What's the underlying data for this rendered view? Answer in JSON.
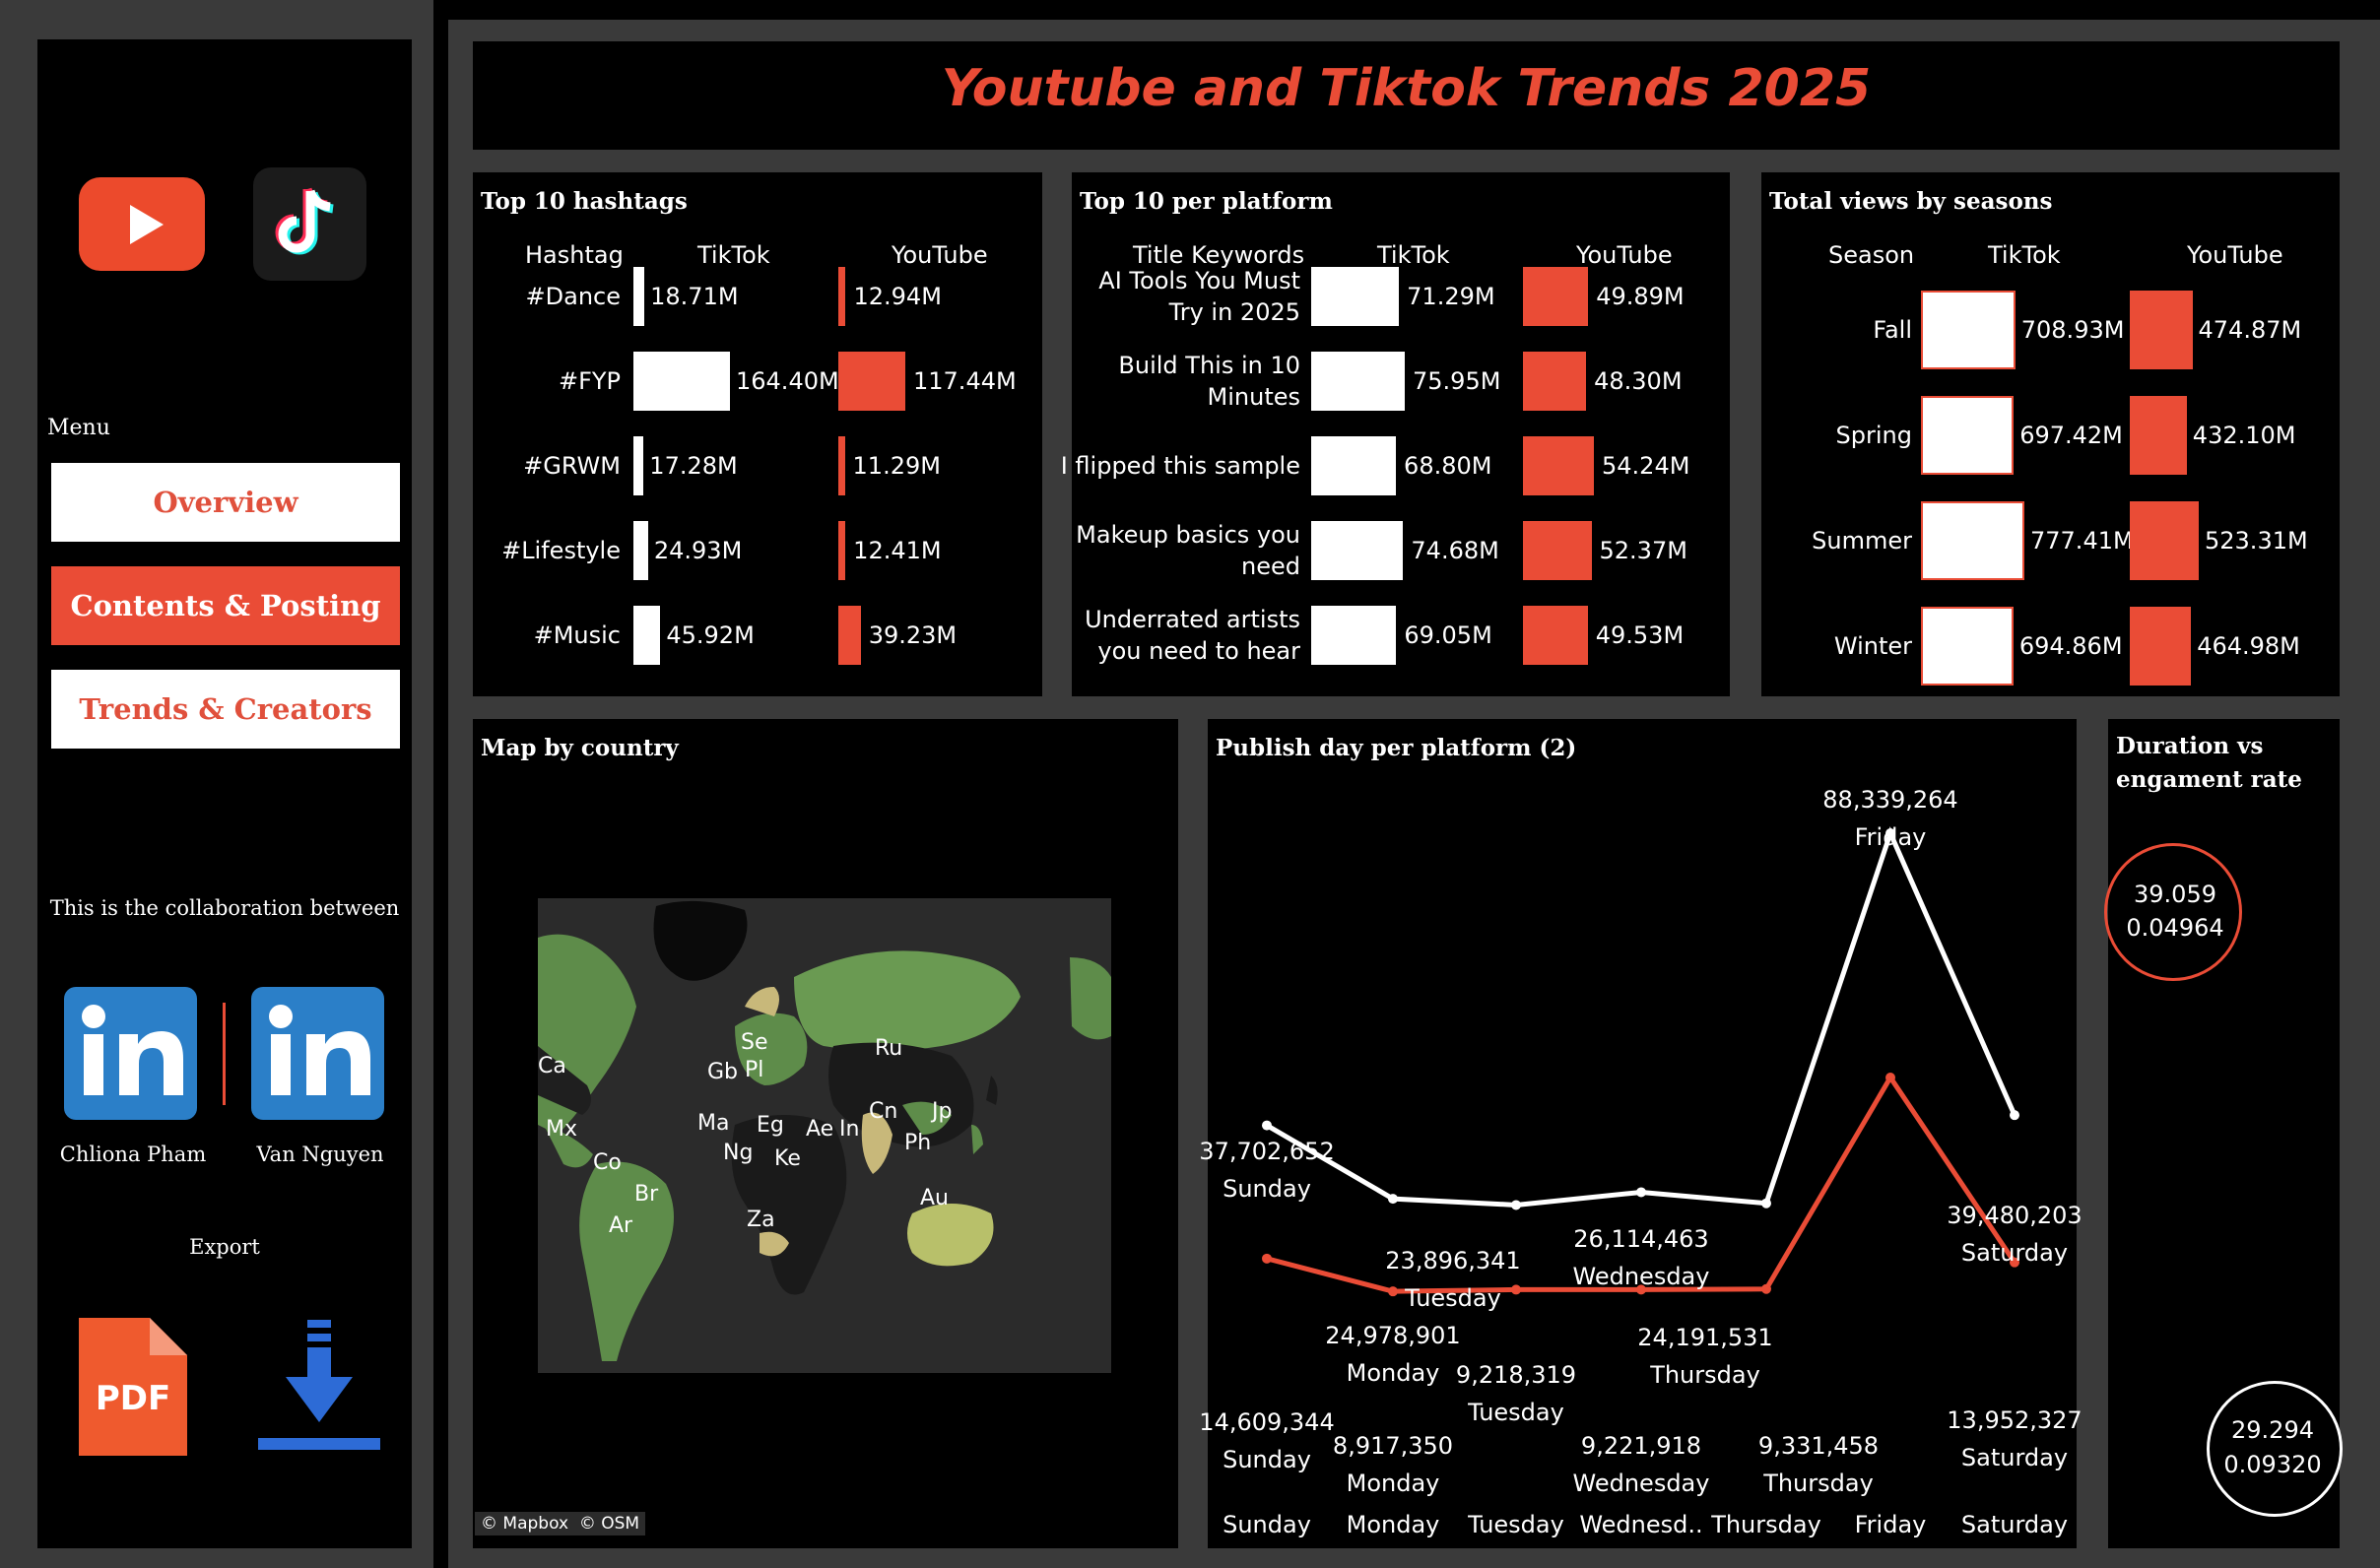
{
  "dashboard": {
    "title": "Youtube and Tiktok Trends 2025"
  },
  "sidebar": {
    "menu_label": "Menu",
    "nav": [
      {
        "label": "Overview"
      },
      {
        "label": "Contents & Posting"
      },
      {
        "label": "Trends & Creators"
      }
    ],
    "collab_text": "This is the collaboration between",
    "creators": [
      {
        "name": "Chliona Pham"
      },
      {
        "name": "Van Nguyen"
      }
    ],
    "export_label": "Export",
    "pdf_label": "PDF"
  },
  "colors": {
    "accent": "#ea4c36",
    "youtube": "#ea4c36",
    "tiktok": "#ffffff",
    "panel_bg": "#000000",
    "frame": "#3a3a3a"
  },
  "hashtags": {
    "title": "Top 10 hashtags",
    "headers": {
      "col1": "Hashtag",
      "col2": "TikTok",
      "col3": "YouTube"
    },
    "rows": [
      {
        "tag": "#Dance",
        "tiktok": 18.71,
        "youtube": 12.94,
        "tiktok_label": "18.71M",
        "youtube_label": "12.94M"
      },
      {
        "tag": "#FYP",
        "tiktok": 164.4,
        "youtube": 117.44,
        "tiktok_label": "164.40M",
        "youtube_label": "117.44M"
      },
      {
        "tag": "#GRWM",
        "tiktok": 17.28,
        "youtube": 11.29,
        "tiktok_label": "17.28M",
        "youtube_label": "11.29M"
      },
      {
        "tag": "#Lifestyle",
        "tiktok": 24.93,
        "youtube": 12.41,
        "tiktok_label": "24.93M",
        "youtube_label": "12.41M"
      },
      {
        "tag": "#Music",
        "tiktok": 45.92,
        "youtube": 39.23,
        "tiktok_label": "45.92M",
        "youtube_label": "39.23M"
      }
    ]
  },
  "platform": {
    "title": "Top 10 per platform",
    "headers": {
      "col1": "Title Keywords",
      "col2": "TikTok",
      "col3": "YouTube"
    },
    "rows": [
      {
        "line1": "AI Tools You Must",
        "line2": "Try in 2025",
        "tiktok": 71.29,
        "youtube": 49.89,
        "tiktok_label": "71.29M",
        "youtube_label": "49.89M"
      },
      {
        "line1": "Build This in 10",
        "line2": "Minutes",
        "tiktok": 75.95,
        "youtube": 48.3,
        "tiktok_label": "75.95M",
        "youtube_label": "48.30M"
      },
      {
        "line1": "I flipped this sample",
        "line2": "",
        "tiktok": 68.8,
        "youtube": 54.24,
        "tiktok_label": "68.80M",
        "youtube_label": "54.24M"
      },
      {
        "line1": "Makeup basics you",
        "line2": "need",
        "tiktok": 74.68,
        "youtube": 52.37,
        "tiktok_label": "74.68M",
        "youtube_label": "52.37M"
      },
      {
        "line1": "Underrated artists",
        "line2": "you need to hear",
        "tiktok": 69.05,
        "youtube": 49.53,
        "tiktok_label": "69.05M",
        "youtube_label": "49.53M"
      }
    ]
  },
  "seasons": {
    "title": "Total views by seasons",
    "headers": {
      "col1": "Season",
      "col2": "TikTok",
      "col3": "YouTube"
    },
    "rows": [
      {
        "season": "Fall",
        "tiktok": 708.93,
        "youtube": 474.87,
        "tiktok_label": "708.93M",
        "youtube_label": "474.87M"
      },
      {
        "season": "Spring",
        "tiktok": 697.42,
        "youtube": 432.1,
        "tiktok_label": "697.42M",
        "youtube_label": "432.10M"
      },
      {
        "season": "Summer",
        "tiktok": 777.41,
        "youtube": 523.31,
        "tiktok_label": "777.41M",
        "youtube_label": "523.31M"
      },
      {
        "season": "Winter",
        "tiktok": 694.86,
        "youtube": 464.98,
        "tiktok_label": "694.86M",
        "youtube_label": "464.98M"
      }
    ]
  },
  "map": {
    "title": "Map by country",
    "attribution": "© Mapbox  © OSM",
    "labels": [
      "Ca",
      "Mx",
      "Co",
      "Br",
      "Ar",
      "Se",
      "Gb",
      "Pl",
      "Ma",
      "Eg",
      "Ng",
      "Ke",
      "Za",
      "Ae",
      "In",
      "Ru",
      "Cn",
      "Jp",
      "Ph",
      "Au"
    ]
  },
  "chart_data": {
    "type": "line",
    "title": "Publish day per platform (2)",
    "categories": [
      "Sunday",
      "Monday",
      "Tuesday",
      "Wednesd..",
      "Thursday",
      "Friday",
      "Saturday"
    ],
    "ylim": [
      0,
      95000000
    ],
    "series": [
      {
        "color": "#ffffff",
        "values": [
          37702652,
          24978901,
          23896341,
          26114463,
          24191531,
          88339264,
          39480203
        ],
        "labels": [
          "37,702,652",
          "24,978,901",
          "23,896,341",
          "26,114,463",
          "24,191,531",
          "88,339,264",
          "39,480,203"
        ],
        "day_labels": [
          "Sunday",
          "Monday",
          "Tuesday",
          "Wednesday",
          "Thursday",
          "Friday",
          "Saturday"
        ]
      },
      {
        "color": "#ea4c36",
        "values": [
          14609344,
          8917350,
          9218319,
          9221918,
          9331458,
          46000000,
          13952327
        ],
        "labels": [
          "14,609,344",
          "8,917,350",
          "9,218,319",
          "9,221,918",
          "9,331,458",
          "",
          "13,952,327"
        ],
        "day_labels": [
          "Sunday",
          "Monday",
          "Tuesday",
          "Wednesday",
          "Thursday",
          "",
          "Saturday"
        ]
      }
    ]
  },
  "scatter": {
    "title_line1": "Duration vs",
    "title_line2": "engament rate",
    "points": [
      {
        "duration": "39.059",
        "rate": "0.04964",
        "color": "#ea4c36"
      },
      {
        "duration": "29.294",
        "rate": "0.09320",
        "color": "#ffffff"
      }
    ]
  }
}
